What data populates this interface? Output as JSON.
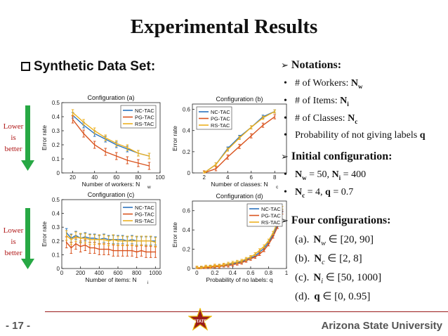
{
  "slide": {
    "title": "Experimental Results",
    "section": "Synthetic Data Set:",
    "left_label_top": [
      "Lower",
      "is",
      "better"
    ],
    "left_label_bottom": [
      "Lower",
      "is",
      "better"
    ],
    "page_number": "- 17 -",
    "university": "Arizona State University",
    "logo_text": "STATE"
  },
  "notes": {
    "notations_header": "Notations:",
    "notations": [
      {
        "text": "# of Workers: ",
        "sym": "N",
        "sub": "w"
      },
      {
        "text": "# of Items: ",
        "sym": "N",
        "sub": "i"
      },
      {
        "text": "# of Classes: ",
        "sym": "N",
        "sub": "c"
      },
      {
        "text": "Probability of not giving labels ",
        "sym": "q",
        "sub": ""
      }
    ],
    "initial_header": "Initial configuration:",
    "initial": [
      {
        "a_sym": "N",
        "a_sub": "w",
        "a_val": " = 50, ",
        "b_sym": "N",
        "b_sub": "i",
        "b_val": " = 400"
      },
      {
        "a_sym": "N",
        "a_sub": "c",
        "a_val": " = 4, ",
        "b_sym": "q",
        "b_sub": "",
        "b_val": " = 0.7"
      }
    ],
    "four_header": "Four configurations:",
    "configs": [
      {
        "label": "(a).",
        "sym": "N",
        "sub": "w",
        "rest": " ∈ [20, 90]"
      },
      {
        "label": "(b).",
        "sym": "N",
        "sub": "c",
        "rest": " ∈ [2, 8]"
      },
      {
        "label": "(c).",
        "sym": "N",
        "sub": "i",
        "rest": " ∈ [50, 1000]"
      },
      {
        "label": "(d).",
        "sym": "q",
        "sub": "",
        "rest": " ∈ [0, 0.95]"
      }
    ]
  },
  "colors": {
    "NC-TAC": "#2a72bd",
    "PG-TAC": "#d9531e",
    "RS-TAC": "#edb120",
    "title_red": "#b01818",
    "arrow_green": "#27a844"
  },
  "chart_data": [
    {
      "type": "line",
      "title": "Configuration (a)",
      "xlabel": "Number of workers: N",
      "xlabel_sub": "w",
      "ylabel": "Error rate",
      "xlim": [
        10,
        100
      ],
      "ylim": [
        0,
        0.5
      ],
      "xticks": [
        20,
        40,
        60,
        80,
        100
      ],
      "yticks": [
        0,
        0.1,
        0.2,
        0.3,
        0.4,
        0.5
      ],
      "legend": "top-right",
      "x": [
        20,
        30,
        40,
        50,
        60,
        70,
        80,
        90
      ],
      "series": [
        {
          "name": "NC-TAC",
          "values": [
            0.41,
            0.34,
            0.28,
            0.24,
            0.2,
            0.17,
            0.14,
            0.12
          ],
          "err": 0.02
        },
        {
          "name": "PG-TAC",
          "values": [
            0.38,
            0.28,
            0.2,
            0.15,
            0.12,
            0.09,
            0.07,
            0.05
          ],
          "err": 0.025
        },
        {
          "name": "RS-TAC",
          "values": [
            0.43,
            0.36,
            0.3,
            0.25,
            0.21,
            0.18,
            0.14,
            0.12
          ],
          "err": 0.02
        }
      ]
    },
    {
      "type": "line",
      "title": "Configuration (b)",
      "xlabel": "Number of classes: N",
      "xlabel_sub": "c",
      "ylabel": "Error rate",
      "xlim": [
        1,
        9
      ],
      "ylim": [
        0,
        0.65
      ],
      "xticks": [
        2,
        4,
        6,
        8
      ],
      "yticks": [
        0,
        0.2,
        0.4,
        0.6
      ],
      "legend": "top-left",
      "x": [
        2,
        3,
        4,
        5,
        6,
        7,
        8
      ],
      "series": [
        {
          "name": "NC-TAC",
          "values": [
            0.0,
            0.08,
            0.23,
            0.34,
            0.43,
            0.53,
            0.58
          ],
          "err": 0.015
        },
        {
          "name": "PG-TAC",
          "values": [
            0.0,
            0.04,
            0.15,
            0.25,
            0.35,
            0.45,
            0.53
          ],
          "err": 0.02
        },
        {
          "name": "RS-TAC",
          "values": [
            0.0,
            0.08,
            0.22,
            0.33,
            0.43,
            0.52,
            0.58
          ],
          "err": 0.015
        }
      ]
    },
    {
      "type": "line",
      "title": "Configuration (c)",
      "xlabel": "Number of items: N",
      "xlabel_sub": "i",
      "ylabel": "Error rate",
      "xlim": [
        0,
        1050
      ],
      "ylim": [
        0,
        0.5
      ],
      "xticks": [
        0,
        200,
        400,
        600,
        800,
        1000
      ],
      "yticks": [
        0,
        0.1,
        0.2,
        0.3,
        0.4,
        0.5
      ],
      "legend": "top-right",
      "x": [
        50,
        100,
        150,
        200,
        250,
        300,
        350,
        400,
        450,
        500,
        550,
        600,
        650,
        700,
        750,
        800,
        850,
        900,
        950,
        1000
      ],
      "series": [
        {
          "name": "NC-TAC",
          "values": [
            0.26,
            0.22,
            0.24,
            0.22,
            0.23,
            0.22,
            0.22,
            0.21,
            0.22,
            0.21,
            0.21,
            0.21,
            0.21,
            0.2,
            0.21,
            0.2,
            0.2,
            0.2,
            0.2,
            0.2
          ],
          "err": 0.03
        },
        {
          "name": "PG-TAC",
          "values": [
            0.19,
            0.15,
            0.18,
            0.16,
            0.17,
            0.15,
            0.15,
            0.14,
            0.14,
            0.14,
            0.13,
            0.13,
            0.13,
            0.13,
            0.13,
            0.12,
            0.13,
            0.12,
            0.12,
            0.12
          ],
          "err": 0.04
        },
        {
          "name": "RS-TAC",
          "values": [
            0.24,
            0.21,
            0.23,
            0.22,
            0.22,
            0.21,
            0.21,
            0.21,
            0.21,
            0.2,
            0.21,
            0.2,
            0.2,
            0.2,
            0.2,
            0.2,
            0.2,
            0.2,
            0.2,
            0.19
          ],
          "err": 0.035
        }
      ]
    },
    {
      "type": "line",
      "title": "Configuration (d)",
      "xlabel": "Probability of no labels: q",
      "xlabel_sub": "",
      "ylabel": "Error rate",
      "xlim": [
        -0.05,
        1
      ],
      "ylim": [
        0,
        0.7
      ],
      "xticks": [
        0,
        0.2,
        0.4,
        0.6,
        0.8,
        1
      ],
      "yticks": [
        0,
        0.2,
        0.4,
        0.6
      ],
      "legend": "top-right",
      "x": [
        0,
        0.05,
        0.1,
        0.15,
        0.2,
        0.25,
        0.3,
        0.35,
        0.4,
        0.45,
        0.5,
        0.55,
        0.6,
        0.65,
        0.7,
        0.75,
        0.8,
        0.85,
        0.9,
        0.95
      ],
      "series": [
        {
          "name": "NC-TAC",
          "values": [
            0.0,
            0.01,
            0.01,
            0.02,
            0.02,
            0.03,
            0.03,
            0.04,
            0.05,
            0.06,
            0.07,
            0.09,
            0.11,
            0.13,
            0.17,
            0.21,
            0.27,
            0.35,
            0.45,
            0.6
          ],
          "err": 0.012
        },
        {
          "name": "PG-TAC",
          "values": [
            0.0,
            0.0,
            0.01,
            0.01,
            0.02,
            0.02,
            0.03,
            0.03,
            0.04,
            0.05,
            0.06,
            0.08,
            0.1,
            0.12,
            0.15,
            0.19,
            0.25,
            0.33,
            0.43,
            0.58
          ],
          "err": 0.015
        },
        {
          "name": "RS-TAC",
          "values": [
            0.01,
            0.01,
            0.02,
            0.02,
            0.03,
            0.03,
            0.04,
            0.05,
            0.06,
            0.07,
            0.08,
            0.1,
            0.12,
            0.15,
            0.19,
            0.23,
            0.29,
            0.37,
            0.48,
            0.63
          ],
          "err": 0.015
        }
      ]
    }
  ]
}
